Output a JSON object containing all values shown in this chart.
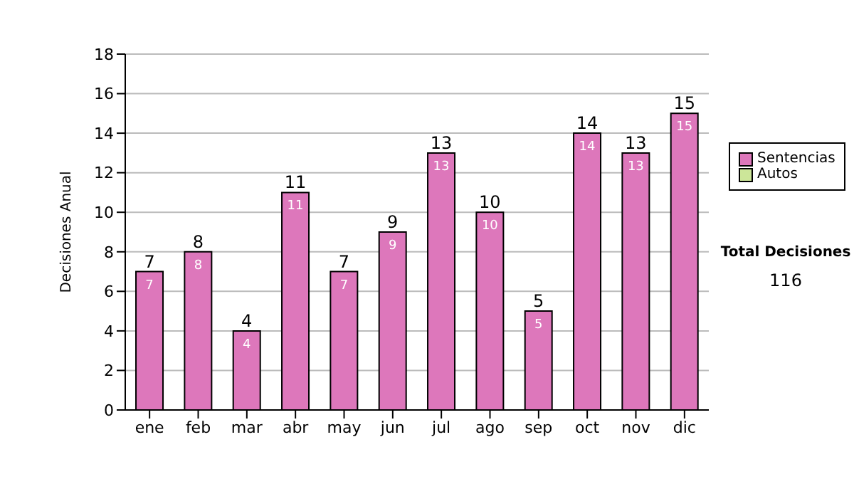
{
  "chart_data": {
    "type": "bar",
    "ylabel": "Decisiones Anual",
    "categories": [
      "ene",
      "feb",
      "mar",
      "abr",
      "may",
      "jun",
      "jul",
      "ago",
      "sep",
      "oct",
      "nov",
      "dic"
    ],
    "series": [
      {
        "name": "Sentencias",
        "color": "#dd77bb",
        "values": [
          7,
          8,
          4,
          11,
          7,
          9,
          13,
          10,
          5,
          14,
          13,
          15
        ],
        "value_labels": [
          "7",
          "8",
          "4",
          "11",
          "7",
          "9",
          "13",
          "10",
          "5",
          "14",
          "13",
          "15"
        ]
      },
      {
        "name": "Autos",
        "color": "#cce699",
        "values": [
          null,
          null,
          null,
          null,
          null,
          null,
          null,
          null,
          null,
          null,
          null,
          null
        ]
      }
    ],
    "stacked": true,
    "totals": [
      "7",
      "8",
      "4",
      "11",
      "7",
      "9",
      "13",
      "10",
      "5",
      "14",
      "13",
      "15"
    ],
    "ylim": [
      0,
      18
    ],
    "yticks": [
      0,
      2,
      4,
      6,
      8,
      10,
      12,
      14,
      16,
      18
    ],
    "grid": "y",
    "legend": "right",
    "annotations": [
      "Total Decisiones",
      "116"
    ]
  }
}
